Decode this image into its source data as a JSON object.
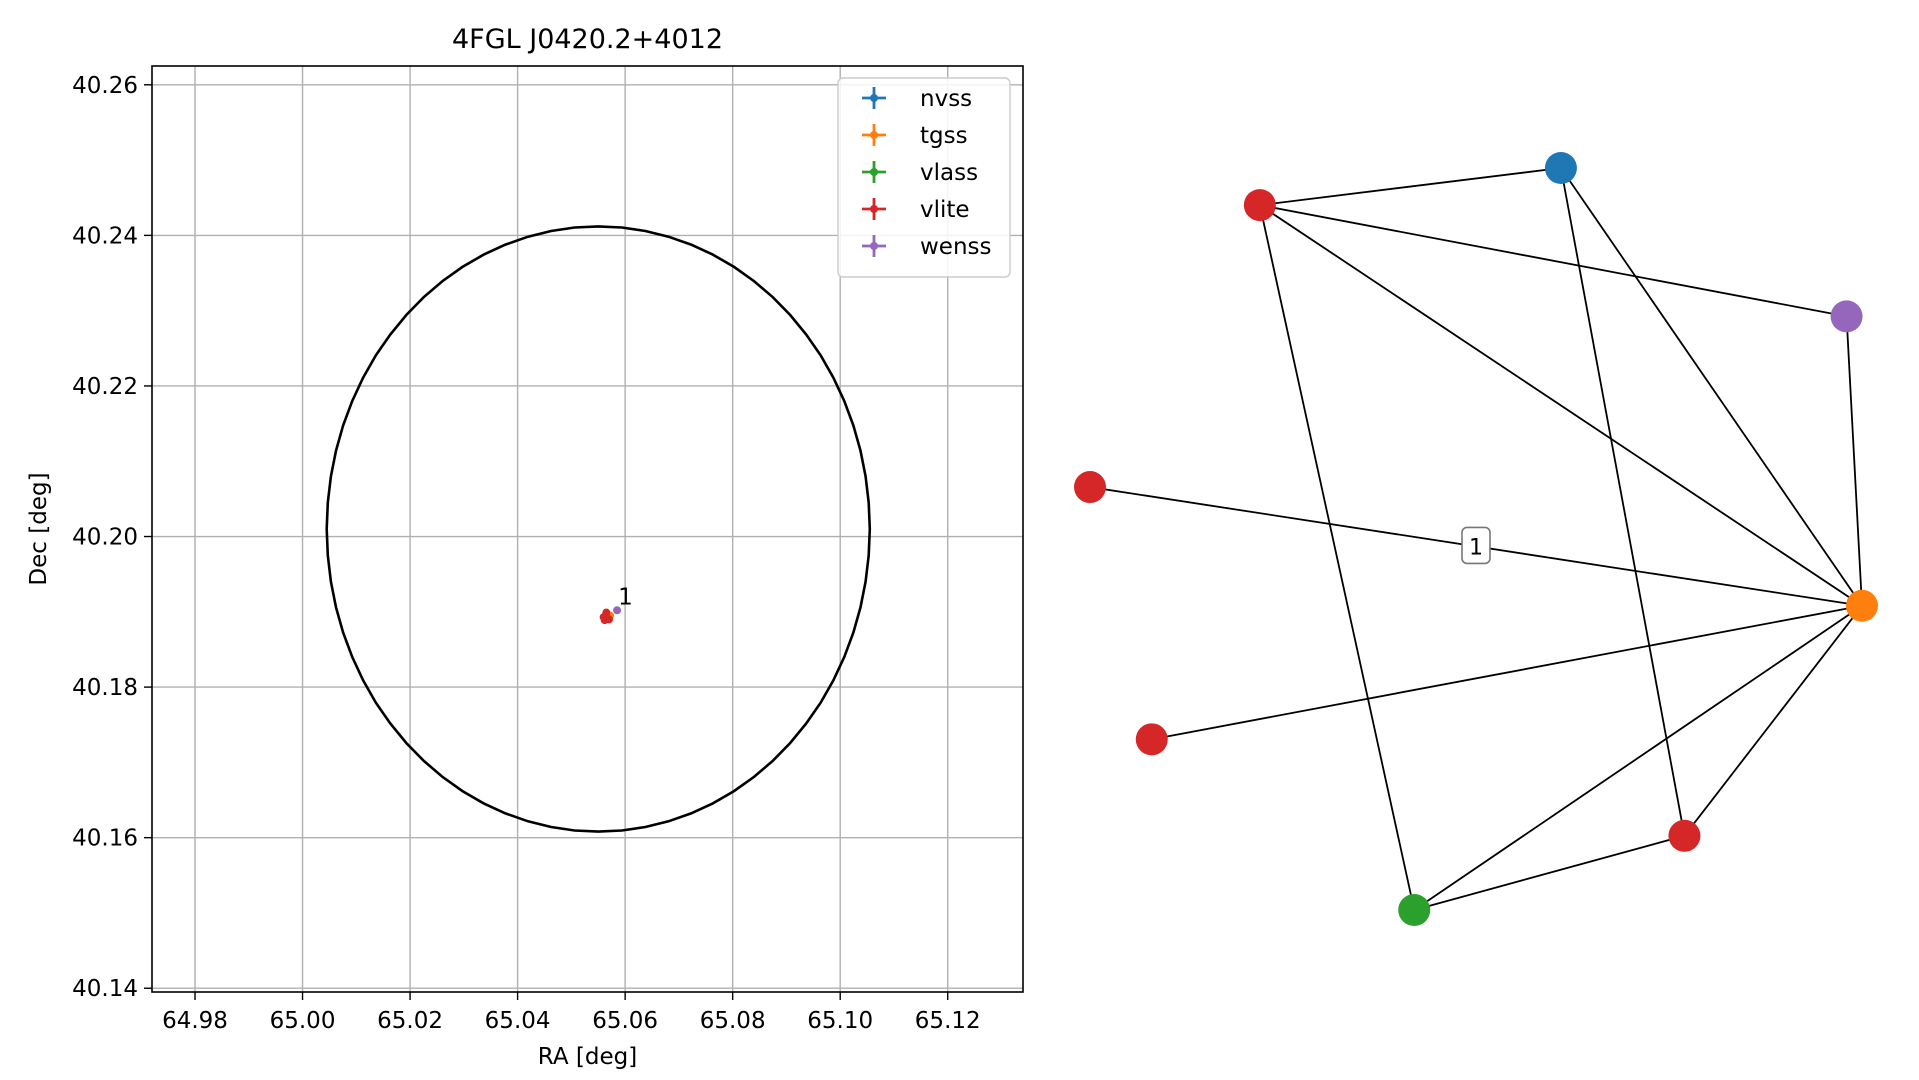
{
  "chart_data": [
    {
      "type": "scatter",
      "title": "4FGL J0420.2+4012",
      "xlabel": "RA [deg]",
      "ylabel": "Dec [deg]",
      "xlim": [
        64.972,
        65.134
      ],
      "ylim": [
        40.1395,
        40.2625
      ],
      "xticks": [
        "64.98",
        "65.00",
        "65.02",
        "65.04",
        "65.06",
        "65.08",
        "65.10",
        "65.12"
      ],
      "yticks": [
        "40.14",
        "40.16",
        "40.18",
        "40.20",
        "40.22",
        "40.24",
        "40.26"
      ],
      "grid": true,
      "legend_position": "upper-right",
      "series": [
        {
          "name": "nvss",
          "color": "#1f77b4",
          "points": [
            {
              "x": 65.0567,
              "y": 40.1895,
              "xerr": 0.0004,
              "yerr": 0.0004
            }
          ]
        },
        {
          "name": "tgss",
          "color": "#ff7f0e",
          "points": [
            {
              "x": 65.0572,
              "y": 40.1895,
              "xerr": 0.0004,
              "yerr": 0.0004
            }
          ]
        },
        {
          "name": "vlass",
          "color": "#2ca02c",
          "points": [
            {
              "x": 65.0566,
              "y": 40.1893,
              "xerr": 0.0002,
              "yerr": 0.0002
            }
          ]
        },
        {
          "name": "vlite",
          "color": "#d62728",
          "points": [
            {
              "x": 65.056,
              "y": 40.1893,
              "xerr": 0.0005,
              "yerr": 0.0005
            },
            {
              "x": 65.057,
              "y": 40.189,
              "xerr": 0.0005,
              "yerr": 0.0005
            },
            {
              "x": 65.0565,
              "y": 40.1899,
              "xerr": 0.0005,
              "yerr": 0.0005
            },
            {
              "x": 65.0562,
              "y": 40.1889,
              "xerr": 0.0005,
              "yerr": 0.0005
            }
          ]
        },
        {
          "name": "wenss",
          "color": "#9467bd",
          "points": [
            {
              "x": 65.0585,
              "y": 40.1902,
              "xerr": 0.0004,
              "yerr": 0.0004
            }
          ]
        }
      ],
      "ellipse": {
        "center_x": 65.055,
        "center_y": 40.201,
        "semi_x": 0.0505,
        "semi_y": 0.0402,
        "color": "#000000"
      },
      "annotations": [
        {
          "text": "1",
          "x": 65.0585,
          "y": 40.1902
        }
      ]
    },
    {
      "type": "network",
      "nodes": [
        {
          "id": "n1",
          "color": "#d62728",
          "x": 0.22,
          "y": 0.95
        },
        {
          "id": "n2",
          "color": "#1f77b4",
          "x": 0.61,
          "y": 1.0
        },
        {
          "id": "n3",
          "color": "#9467bd",
          "x": 0.98,
          "y": 0.8
        },
        {
          "id": "n4",
          "color": "#d62728",
          "x": 0.0,
          "y": 0.57
        },
        {
          "id": "n5",
          "color": "#ff7f0e",
          "x": 1.0,
          "y": 0.41
        },
        {
          "id": "n6",
          "color": "#d62728",
          "x": 0.08,
          "y": 0.23
        },
        {
          "id": "n7",
          "color": "#d62728",
          "x": 0.77,
          "y": 0.1
        },
        {
          "id": "n8",
          "color": "#2ca02c",
          "x": 0.42,
          "y": 0.0
        }
      ],
      "edges": [
        {
          "source": "n1",
          "target": "n2",
          "label": ""
        },
        {
          "source": "n1",
          "target": "n3",
          "label": ""
        },
        {
          "source": "n1",
          "target": "n5",
          "label": ""
        },
        {
          "source": "n1",
          "target": "n8",
          "label": ""
        },
        {
          "source": "n2",
          "target": "n5",
          "label": ""
        },
        {
          "source": "n2",
          "target": "n7",
          "label": ""
        },
        {
          "source": "n3",
          "target": "n5",
          "label": ""
        },
        {
          "source": "n4",
          "target": "n5",
          "label": "1"
        },
        {
          "source": "n6",
          "target": "n5",
          "label": ""
        },
        {
          "source": "n8",
          "target": "n5",
          "label": ""
        },
        {
          "source": "n7",
          "target": "n5",
          "label": ""
        },
        {
          "source": "n8",
          "target": "n7",
          "label": ""
        }
      ]
    }
  ]
}
